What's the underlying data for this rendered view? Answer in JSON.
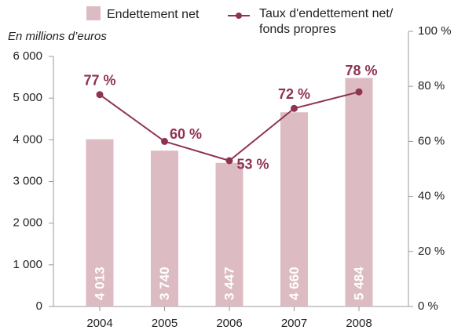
{
  "chart_data": {
    "type": "bar_line",
    "y_label": "En millions d’euros",
    "categories": [
      "2004",
      "2005",
      "2006",
      "2007",
      "2008"
    ],
    "series": [
      {
        "name": "Endettement net",
        "type": "bar",
        "color": "#dcbcc2",
        "values": [
          4013,
          3740,
          3447,
          4660,
          5484
        ],
        "value_labels": [
          "4 013",
          "3 740",
          "3 447",
          "4 660",
          "5 484"
        ]
      },
      {
        "name": "Taux d'endettement net/ fonds propres",
        "type": "line",
        "axis": "y2",
        "color": "#8e3350",
        "values": [
          77,
          60,
          53,
          72,
          78
        ],
        "value_labels": [
          "77 %",
          "60 %",
          "53 %",
          "72 %",
          "78 %"
        ]
      }
    ],
    "ylim": [
      0,
      6000
    ],
    "yticks": [
      0,
      {
        "value": 1000,
        "label": "1 000"
      },
      {
        "value": 2000,
        "label": "2 000"
      },
      {
        "value": 3000,
        "label": "3 000"
      },
      {
        "value": 4000,
        "label": "4 000"
      },
      {
        "value": 5000,
        "label": "5 000"
      },
      {
        "value": 6000,
        "label": "6 000"
      }
    ],
    "y2lim": [
      0,
      100
    ],
    "y2ticks": [
      {
        "value": 0,
        "label": "0 %"
      },
      {
        "value": 20,
        "label": "20 %"
      },
      {
        "value": 40,
        "label": "40 %"
      },
      {
        "value": 60,
        "label": "60 %"
      },
      {
        "value": 80,
        "label": "80 %"
      },
      {
        "value": 100,
        "label": "100 %"
      }
    ]
  }
}
